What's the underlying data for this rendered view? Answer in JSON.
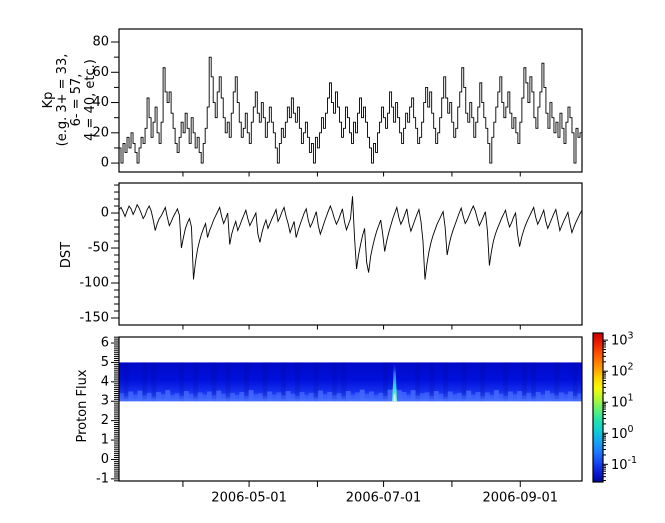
{
  "chart_data": {
    "type": "multi-panel time series with spectrogram",
    "background_color": "#ffffff",
    "line_color": "#000000",
    "x_axis": {
      "range": [
        "2006-03-03",
        "2006-09-29"
      ],
      "ticks": [
        {
          "date": "2006-04-01",
          "label": ""
        },
        {
          "date": "2006-05-01",
          "label": "2006-05-01"
        },
        {
          "date": "2006-06-01",
          "label": ""
        },
        {
          "date": "2006-07-01",
          "label": "2006-07-01"
        },
        {
          "date": "2006-08-01",
          "label": ""
        },
        {
          "date": "2006-09-01",
          "label": "2006-09-01"
        }
      ]
    },
    "panels": [
      {
        "id": "kp",
        "plot": "line-steps",
        "ylabel_lines": [
          "Kp",
          "(e.g. 3+ = 33,",
          "6- = 57,",
          "4 = 40, etc.)"
        ],
        "yticks": [
          0,
          20,
          40,
          60,
          80
        ],
        "yticks_minor": [
          10,
          30,
          50,
          70
        ],
        "ylim": [
          -5.9,
          88.6
        ],
        "values": [
          10,
          0,
          13,
          7,
          17,
          10,
          20,
          13,
          7,
          0,
          10,
          17,
          13,
          23,
          43,
          30,
          17,
          27,
          37,
          20,
          13,
          27,
          63,
          47,
          40,
          47,
          33,
          23,
          13,
          7,
          17,
          27,
          20,
          33,
          23,
          13,
          30,
          20,
          10,
          17,
          7,
          0,
          13,
          23,
          37,
          70,
          57,
          40,
          30,
          47,
          57,
          43,
          30,
          20,
          27,
          17,
          33,
          47,
          57,
          40,
          27,
          17,
          23,
          33,
          20,
          13,
          27,
          37,
          47,
          33,
          27,
          40,
          30,
          17,
          27,
          37,
          27,
          20,
          10,
          0,
          13,
          23,
          17,
          27,
          37,
          30,
          43,
          33,
          27,
          37,
          23,
          13,
          20,
          27,
          17,
          7,
          13,
          0,
          17,
          10,
          20,
          30,
          23,
          33,
          43,
          53,
          40,
          33,
          47,
          37,
          27,
          17,
          23,
          37,
          30,
          20,
          13,
          27,
          20,
          33,
          43,
          30,
          37,
          27,
          17,
          10,
          0,
          13,
          7,
          20,
          27,
          37,
          30,
          23,
          33,
          47,
          37,
          27,
          40,
          30,
          20,
          13,
          23,
          33,
          27,
          37,
          43,
          30,
          23,
          13,
          17,
          27,
          40,
          50,
          37,
          47,
          33,
          23,
          13,
          20,
          30,
          43,
          57,
          43,
          33,
          40,
          27,
          17,
          23,
          37,
          47,
          63,
          50,
          33,
          27,
          40,
          30,
          17,
          27,
          37,
          53,
          40,
          30,
          23,
          13,
          0,
          17,
          27,
          37,
          47,
          57,
          40,
          30,
          37,
          47,
          33,
          23,
          30,
          20,
          13,
          27,
          43,
          63,
          53,
          40,
          57,
          47,
          30,
          23,
          37,
          47,
          66,
          50,
          33,
          23,
          40,
          30,
          20,
          27,
          17,
          33,
          23,
          13,
          27,
          37,
          30,
          20,
          0,
          23,
          17,
          20
        ]
      },
      {
        "id": "dst",
        "plot": "line",
        "ylabel": "DST",
        "yticks": [
          0,
          -50,
          -100,
          -150
        ],
        "minor_tick_step": 10,
        "ylim": [
          -160,
          42.9
        ],
        "values": [
          5,
          8,
          2,
          -5,
          3,
          10,
          6,
          -2,
          4,
          12,
          7,
          0,
          -8,
          -3,
          5,
          10,
          3,
          -10,
          -25,
          -15,
          -8,
          -4,
          2,
          8,
          -6,
          -18,
          -12,
          -5,
          0,
          6,
          -3,
          -50,
          -35,
          -22,
          -14,
          -8,
          -20,
          -95,
          -70,
          -52,
          -40,
          -30,
          -22,
          -15,
          -35,
          -25,
          -18,
          -10,
          -4,
          2,
          8,
          -5,
          -15,
          -8,
          0,
          -45,
          -30,
          -20,
          -12,
          -25,
          -18,
          -10,
          -3,
          4,
          -8,
          -18,
          -12,
          -6,
          0,
          -30,
          -42,
          -28,
          -18,
          -10,
          -22,
          -15,
          -8,
          -2,
          5,
          -12,
          -6,
          2,
          8,
          -5,
          -15,
          -28,
          -20,
          -12,
          -35,
          -25,
          -16,
          -8,
          0,
          6,
          -10,
          -20,
          -14,
          -6,
          2,
          -18,
          -30,
          -22,
          -13,
          -5,
          3,
          10,
          2,
          -8,
          -16,
          -10,
          -2,
          6,
          -12,
          -24,
          -16,
          -8,
          24,
          -35,
          -80,
          -60,
          -45,
          -32,
          -22,
          -70,
          -85,
          -62,
          -48,
          -36,
          -26,
          -18,
          -10,
          -30,
          -55,
          -40,
          -28,
          -18,
          -8,
          0,
          8,
          -6,
          -16,
          -10,
          -2,
          6,
          -14,
          -26,
          -18,
          -10,
          -2,
          5,
          -12,
          -40,
          -95,
          -72,
          -55,
          -42,
          -32,
          -24,
          -16,
          -10,
          -4,
          2,
          -20,
          -60,
          -45,
          -33,
          -24,
          -16,
          -8,
          0,
          7,
          -5,
          -15,
          -10,
          -3,
          4,
          10,
          3,
          -8,
          -18,
          -12,
          -5,
          2,
          -25,
          -75,
          -55,
          -40,
          -30,
          -22,
          -15,
          -8,
          -2,
          4,
          -10,
          -20,
          -14,
          -6,
          0,
          -30,
          -48,
          -35,
          -25,
          -17,
          -10,
          -4,
          2,
          8,
          -6,
          -16,
          -10,
          -3,
          4,
          -12,
          -22,
          -15,
          -8,
          -1,
          5,
          -10,
          -25,
          -18,
          -11,
          -5,
          1,
          -15,
          -28,
          -20,
          -13,
          -7,
          -1,
          4
        ]
      },
      {
        "id": "proton",
        "plot": "spectrogram",
        "ylabel": "Proton Flux",
        "yticks": [
          -1,
          0,
          1,
          2,
          3,
          4,
          5,
          6
        ],
        "minor_tick_step": 0.1,
        "ylim": [
          -1.11,
          6.31
        ],
        "band": {
          "y_min": 3,
          "y_max": 5,
          "base_color": "#0010dc",
          "bottom_edge_color": "#4a70ff"
        },
        "striation_intensity": [
          0.55,
          0.2,
          0.75,
          0.4,
          0.85,
          0.3,
          0.6,
          0.15,
          0.7,
          0.45,
          0.9,
          0.35,
          0.55,
          0.25,
          0.8,
          0.5,
          0.2,
          0.65,
          0.4,
          0.75,
          0.3,
          0.85,
          0.5,
          0.15,
          0.6,
          0.35,
          0.7,
          0.25,
          0.9,
          0.45,
          0.55,
          0.2,
          0.75,
          0.4,
          0.65,
          0.3,
          0.8,
          0.5,
          0.25,
          0.7,
          0.35,
          0.6,
          0.15,
          0.85,
          0.45,
          0.7,
          0.3,
          0.55,
          0.2,
          0.8,
          0.4,
          0.65,
          0.95,
          0.5,
          0.75,
          0.35,
          0.6,
          0.25,
          0.95,
          1.0,
          0.9,
          0.7,
          0.4,
          0.9,
          0.3,
          0.55,
          0.65,
          0.25,
          0.8,
          0.5,
          0.15,
          0.75,
          0.45,
          0.6,
          0.3,
          0.85,
          0.4,
          0.7,
          0.2,
          0.65,
          0.35,
          0.9,
          0.5,
          0.25,
          0.75,
          0.45,
          0.8,
          0.3,
          0.6,
          0.2,
          0.7,
          0.4,
          0.85,
          0.55,
          0.3,
          0.65,
          0.45,
          0.75,
          0.25,
          0.5
        ],
        "event": {
          "date": "2006-07-06",
          "y_min": 3,
          "y_max": 4.9,
          "peak_colors": [
            "#90ffd8",
            "#2fd4ff",
            "#3f8cff"
          ]
        }
      }
    ],
    "colorbar": {
      "scale": "log",
      "colormap": "jet",
      "log_min": -1.57,
      "log_max": 3.23,
      "tick_labels": [
        {
          "base": "10",
          "exp": "3",
          "value": 1000
        },
        {
          "base": "10",
          "exp": "2",
          "value": 100
        },
        {
          "base": "10",
          "exp": "1",
          "value": 10
        },
        {
          "base": "10",
          "exp": "0",
          "value": 1
        },
        {
          "base": "10",
          "exp": "-1",
          "value": 0.1
        }
      ]
    }
  }
}
